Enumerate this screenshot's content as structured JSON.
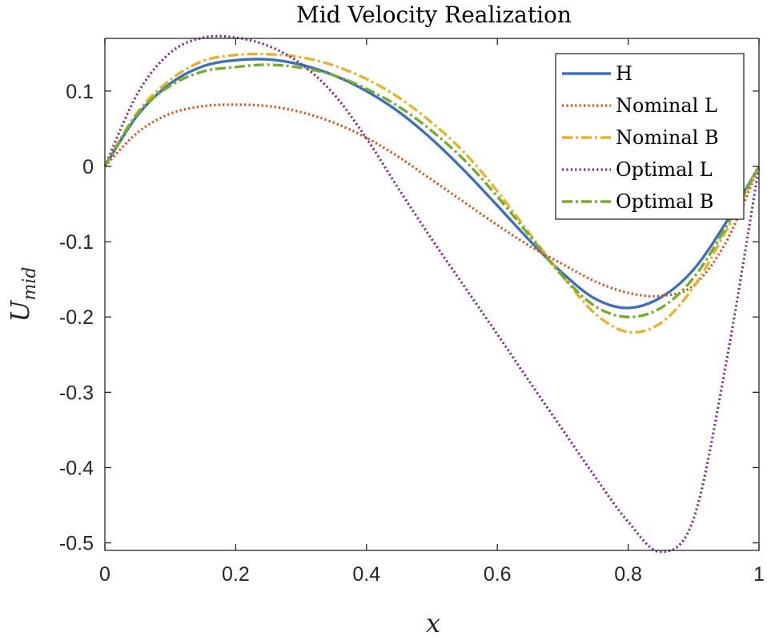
{
  "chart_data": {
    "type": "line",
    "title": "Mid Velocity Realization",
    "xlabel": "x",
    "ylabel_main": "U",
    "ylabel_sub": "mid",
    "xlim": [
      0,
      1
    ],
    "ylim": [
      -0.51,
      0.17
    ],
    "xticks": [
      0,
      0.2,
      0.4,
      0.6,
      0.8,
      1
    ],
    "xtick_labels": [
      "0",
      "0.2",
      "0.4",
      "0.6",
      "0.8",
      "1"
    ],
    "yticks": [
      0.1,
      0,
      -0.1,
      -0.2,
      -0.3,
      -0.4,
      -0.5
    ],
    "ytick_labels": [
      "0.1",
      "0",
      "-0.1",
      "-0.2",
      "-0.3",
      "-0.4",
      "-0.5"
    ],
    "legend_position": "top-right",
    "x": [
      0,
      0.05,
      0.1,
      0.15,
      0.2,
      0.25,
      0.3,
      0.35,
      0.4,
      0.45,
      0.5,
      0.55,
      0.6,
      0.65,
      0.7,
      0.75,
      0.8,
      0.85,
      0.9,
      0.95,
      1.0
    ],
    "series": [
      {
        "name": "H",
        "color": "#3f6fb5",
        "style": "solid",
        "values": [
          0,
          0.068,
          0.11,
          0.133,
          0.141,
          0.142,
          0.135,
          0.121,
          0.1,
          0.072,
          0.036,
          -0.006,
          -0.052,
          -0.099,
          -0.142,
          -0.176,
          -0.188,
          -0.174,
          -0.137,
          -0.074,
          0
        ]
      },
      {
        "name": "Nominal L",
        "color": "#d95319",
        "style": "dotted",
        "values": [
          0,
          0.045,
          0.07,
          0.08,
          0.082,
          0.08,
          0.072,
          0.058,
          0.038,
          0.012,
          -0.018,
          -0.048,
          -0.078,
          -0.106,
          -0.13,
          -0.153,
          -0.168,
          -0.172,
          -0.158,
          -0.1,
          0
        ]
      },
      {
        "name": "Nominal B",
        "color": "#e6b232",
        "style": "dashdot",
        "values": [
          0,
          0.072,
          0.115,
          0.14,
          0.148,
          0.149,
          0.145,
          0.134,
          0.116,
          0.091,
          0.058,
          0.018,
          -0.033,
          -0.09,
          -0.146,
          -0.196,
          -0.22,
          -0.208,
          -0.16,
          -0.085,
          0
        ]
      },
      {
        "name": "Optimal L",
        "color": "#7e2f8e",
        "style": "dotted",
        "values": [
          0,
          0.097,
          0.151,
          0.171,
          0.171,
          0.16,
          0.136,
          0.096,
          0.037,
          -0.031,
          -0.097,
          -0.16,
          -0.223,
          -0.287,
          -0.35,
          -0.413,
          -0.472,
          -0.512,
          -0.468,
          -0.26,
          0
        ]
      },
      {
        "name": "Optimal B",
        "color": "#77ac30",
        "style": "dashdot",
        "values": [
          0,
          0.07,
          0.107,
          0.126,
          0.132,
          0.135,
          0.131,
          0.121,
          0.103,
          0.079,
          0.047,
          0.008,
          -0.04,
          -0.093,
          -0.146,
          -0.186,
          -0.2,
          -0.188,
          -0.148,
          -0.08,
          0
        ]
      }
    ]
  }
}
